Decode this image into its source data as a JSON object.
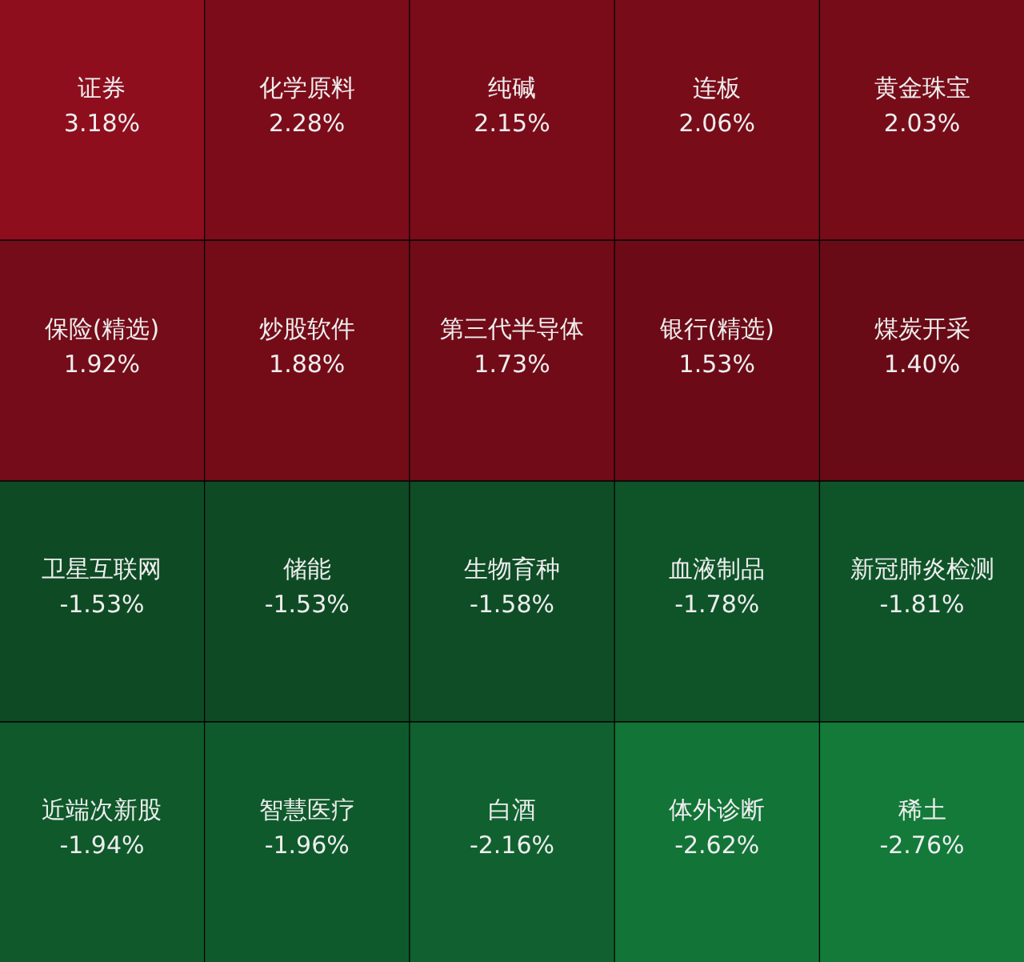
{
  "chart_data": {
    "type": "other",
    "categories": [
      "证券",
      "化学原料",
      "纯碱",
      "连板",
      "黄金珠宝",
      "保险(精选)",
      "炒股软件",
      "第三代半导体",
      "银行(精选)",
      "煤炭开采",
      "卫星互联网",
      "储能",
      "生物育种",
      "血液制品",
      "新冠肺炎检测",
      "近端次新股",
      "智慧医疗",
      "白酒",
      "体外诊断",
      "稀土"
    ],
    "values": [
      3.18,
      2.28,
      2.15,
      2.06,
      2.03,
      1.92,
      1.88,
      1.73,
      1.53,
      1.4,
      -1.53,
      -1.53,
      -1.58,
      -1.78,
      -1.81,
      -1.94,
      -1.96,
      -2.16,
      -2.62,
      -2.76
    ],
    "value_labels": [
      "3.18%",
      "2.28%",
      "2.15%",
      "2.06%",
      "2.03%",
      "1.92%",
      "1.88%",
      "1.73%",
      "1.53%",
      "1.40%",
      "-1.53%",
      "-1.53%",
      "-1.58%",
      "-1.78%",
      "-1.81%",
      "-1.94%",
      "-1.96%",
      "-2.16%",
      "-2.62%",
      "-2.76%"
    ]
  }
}
